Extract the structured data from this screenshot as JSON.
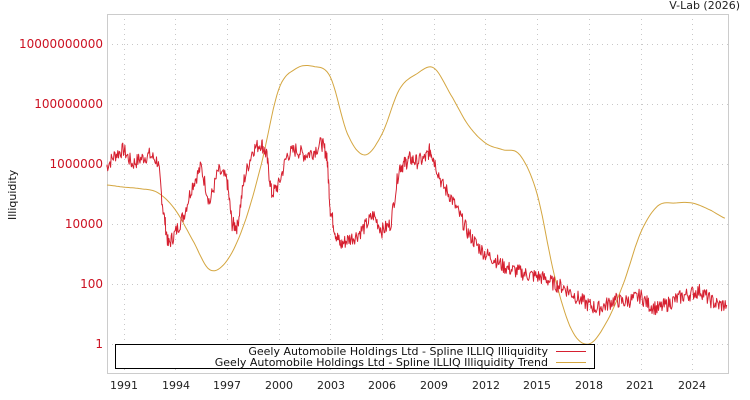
{
  "header": {
    "credit": "V-Lab (2026)"
  },
  "axes": {
    "ylabel": "Illiquidity",
    "yticks": [
      {
        "label": "10000000000",
        "value": 10000000000
      },
      {
        "label": "100000000",
        "value": 100000000
      },
      {
        "label": "1000000",
        "value": 1000000
      },
      {
        "label": "10000",
        "value": 10000
      },
      {
        "label": "100",
        "value": 100
      },
      {
        "label": "1",
        "value": 1
      }
    ],
    "xticks": [
      "1991",
      "1994",
      "1997",
      "2000",
      "2003",
      "2006",
      "2009",
      "2012",
      "2015",
      "2018",
      "2021",
      "2024"
    ]
  },
  "legend": {
    "items": [
      {
        "label": "Geely Automobile Holdings Ltd - Spline ILLIQ Illiquidity",
        "color": "#d62030"
      },
      {
        "label": "Geely Automobile Holdings Ltd - Spline ILLIQ Illiquidity Trend",
        "color": "#d4a640"
      }
    ]
  },
  "colors": {
    "series": "#d62030",
    "trend": "#d4a640",
    "tick_label": "#cc1122",
    "grid": "#cccccc",
    "frame": "#cccccc"
  },
  "chart_data": {
    "type": "line",
    "title": "",
    "credit": "V-Lab (2026)",
    "xlabel": "",
    "ylabel": "Illiquidity",
    "yscale": "log",
    "ylim": [
      0.1,
      100000000000.0
    ],
    "xlim": [
      1990.0,
      2026.1
    ],
    "grid": true,
    "legend_position": "bottom-left inside",
    "x_tick_labels": [
      "1991",
      "1994",
      "1997",
      "2000",
      "2003",
      "2006",
      "2009",
      "2012",
      "2015",
      "2018",
      "2021",
      "2024"
    ],
    "y_tick_labels": [
      "10000000000",
      "100000000",
      "1000000",
      "10000",
      "100",
      "1"
    ],
    "series": [
      {
        "name": "Geely Automobile Holdings Ltd - Spline ILLIQ Illiquidity",
        "color": "#d62030",
        "x": [
          1990.0,
          1990.5,
          1991.0,
          1991.5,
          1992.0,
          1992.5,
          1993.0,
          1993.3,
          1993.6,
          1994.0,
          1994.5,
          1995.0,
          1995.5,
          1996.0,
          1996.5,
          1997.0,
          1997.3,
          1997.6,
          1998.0,
          1998.5,
          1999.0,
          1999.3,
          1999.6,
          2000.0,
          2000.5,
          2001.0,
          2001.5,
          2002.0,
          2002.5,
          2002.8,
          2003.0,
          2003.3,
          2003.6,
          2004.0,
          2004.5,
          2005.0,
          2005.5,
          2006.0,
          2006.5,
          2007.0,
          2007.3,
          2007.6,
          2008.0,
          2008.5,
          2008.8,
          2009.0,
          2009.5,
          2010.0,
          2010.5,
          2011.0,
          2011.5,
          2012.0,
          2012.5,
          2013.0,
          2013.5,
          2014.0,
          2014.5,
          2015.0,
          2015.5,
          2016.0,
          2016.5,
          2017.0,
          2017.5,
          2018.0,
          2018.5,
          2019.0,
          2019.5,
          2020.0,
          2020.5,
          2021.0,
          2021.5,
          2022.0,
          2022.5,
          2023.0,
          2023.5,
          2024.0,
          2024.5,
          2025.0,
          2025.5,
          2026.0
        ],
        "values": [
          800000,
          2000000,
          3000000,
          1000000,
          1500000,
          2000000,
          1200000,
          30000,
          2000,
          5000,
          20000,
          200000,
          800000,
          50000,
          600000,
          300000,
          10000,
          8000,
          300000,
          3000000,
          5000000,
          2000000,
          100000,
          200000,
          2000000,
          3000000,
          2000000,
          2500000,
          5000000,
          2000000,
          30000,
          5000,
          2000,
          3000,
          4000,
          8000,
          20000,
          6000,
          10000,
          800000,
          1000000,
          1500000,
          1200000,
          1500000,
          3000000,
          1500000,
          200000,
          80000,
          20000,
          5000,
          2000,
          1000,
          700,
          400,
          300,
          250,
          200,
          180,
          150,
          100,
          80,
          50,
          30,
          20,
          15,
          20,
          30,
          25,
          30,
          40,
          20,
          15,
          20,
          30,
          40,
          50,
          60,
          30,
          20,
          20
        ]
      },
      {
        "name": "Geely Automobile Holdings Ltd - Spline ILLIQ Illiquidity Trend",
        "color": "#d4a640",
        "x": [
          1990.0,
          1991.0,
          1992.0,
          1993.0,
          1994.0,
          1995.0,
          1996.0,
          1997.0,
          1998.0,
          1999.0,
          2000.0,
          2001.0,
          2002.0,
          2003.0,
          2004.0,
          2005.0,
          2006.0,
          2007.0,
          2008.0,
          2009.0,
          2010.0,
          2011.0,
          2012.0,
          2013.0,
          2014.0,
          2015.0,
          2016.0,
          2017.0,
          2018.0,
          2019.0,
          2020.0,
          2021.0,
          2022.0,
          2023.0,
          2024.0,
          2025.0,
          2026.0
        ],
        "values": [
          200000,
          170000,
          150000,
          110000,
          30000,
          3000,
          300,
          600,
          10000,
          1000000,
          300000000,
          1500000000,
          1800000000,
          800000000,
          10000000,
          2000000,
          10000000,
          300000000,
          1000000000,
          1600000000,
          200000000,
          20000000,
          5000000,
          3000000,
          2000000,
          100000,
          200,
          3,
          1,
          5,
          100,
          5000,
          40000,
          50000,
          50000,
          30000,
          15000
        ]
      }
    ]
  }
}
